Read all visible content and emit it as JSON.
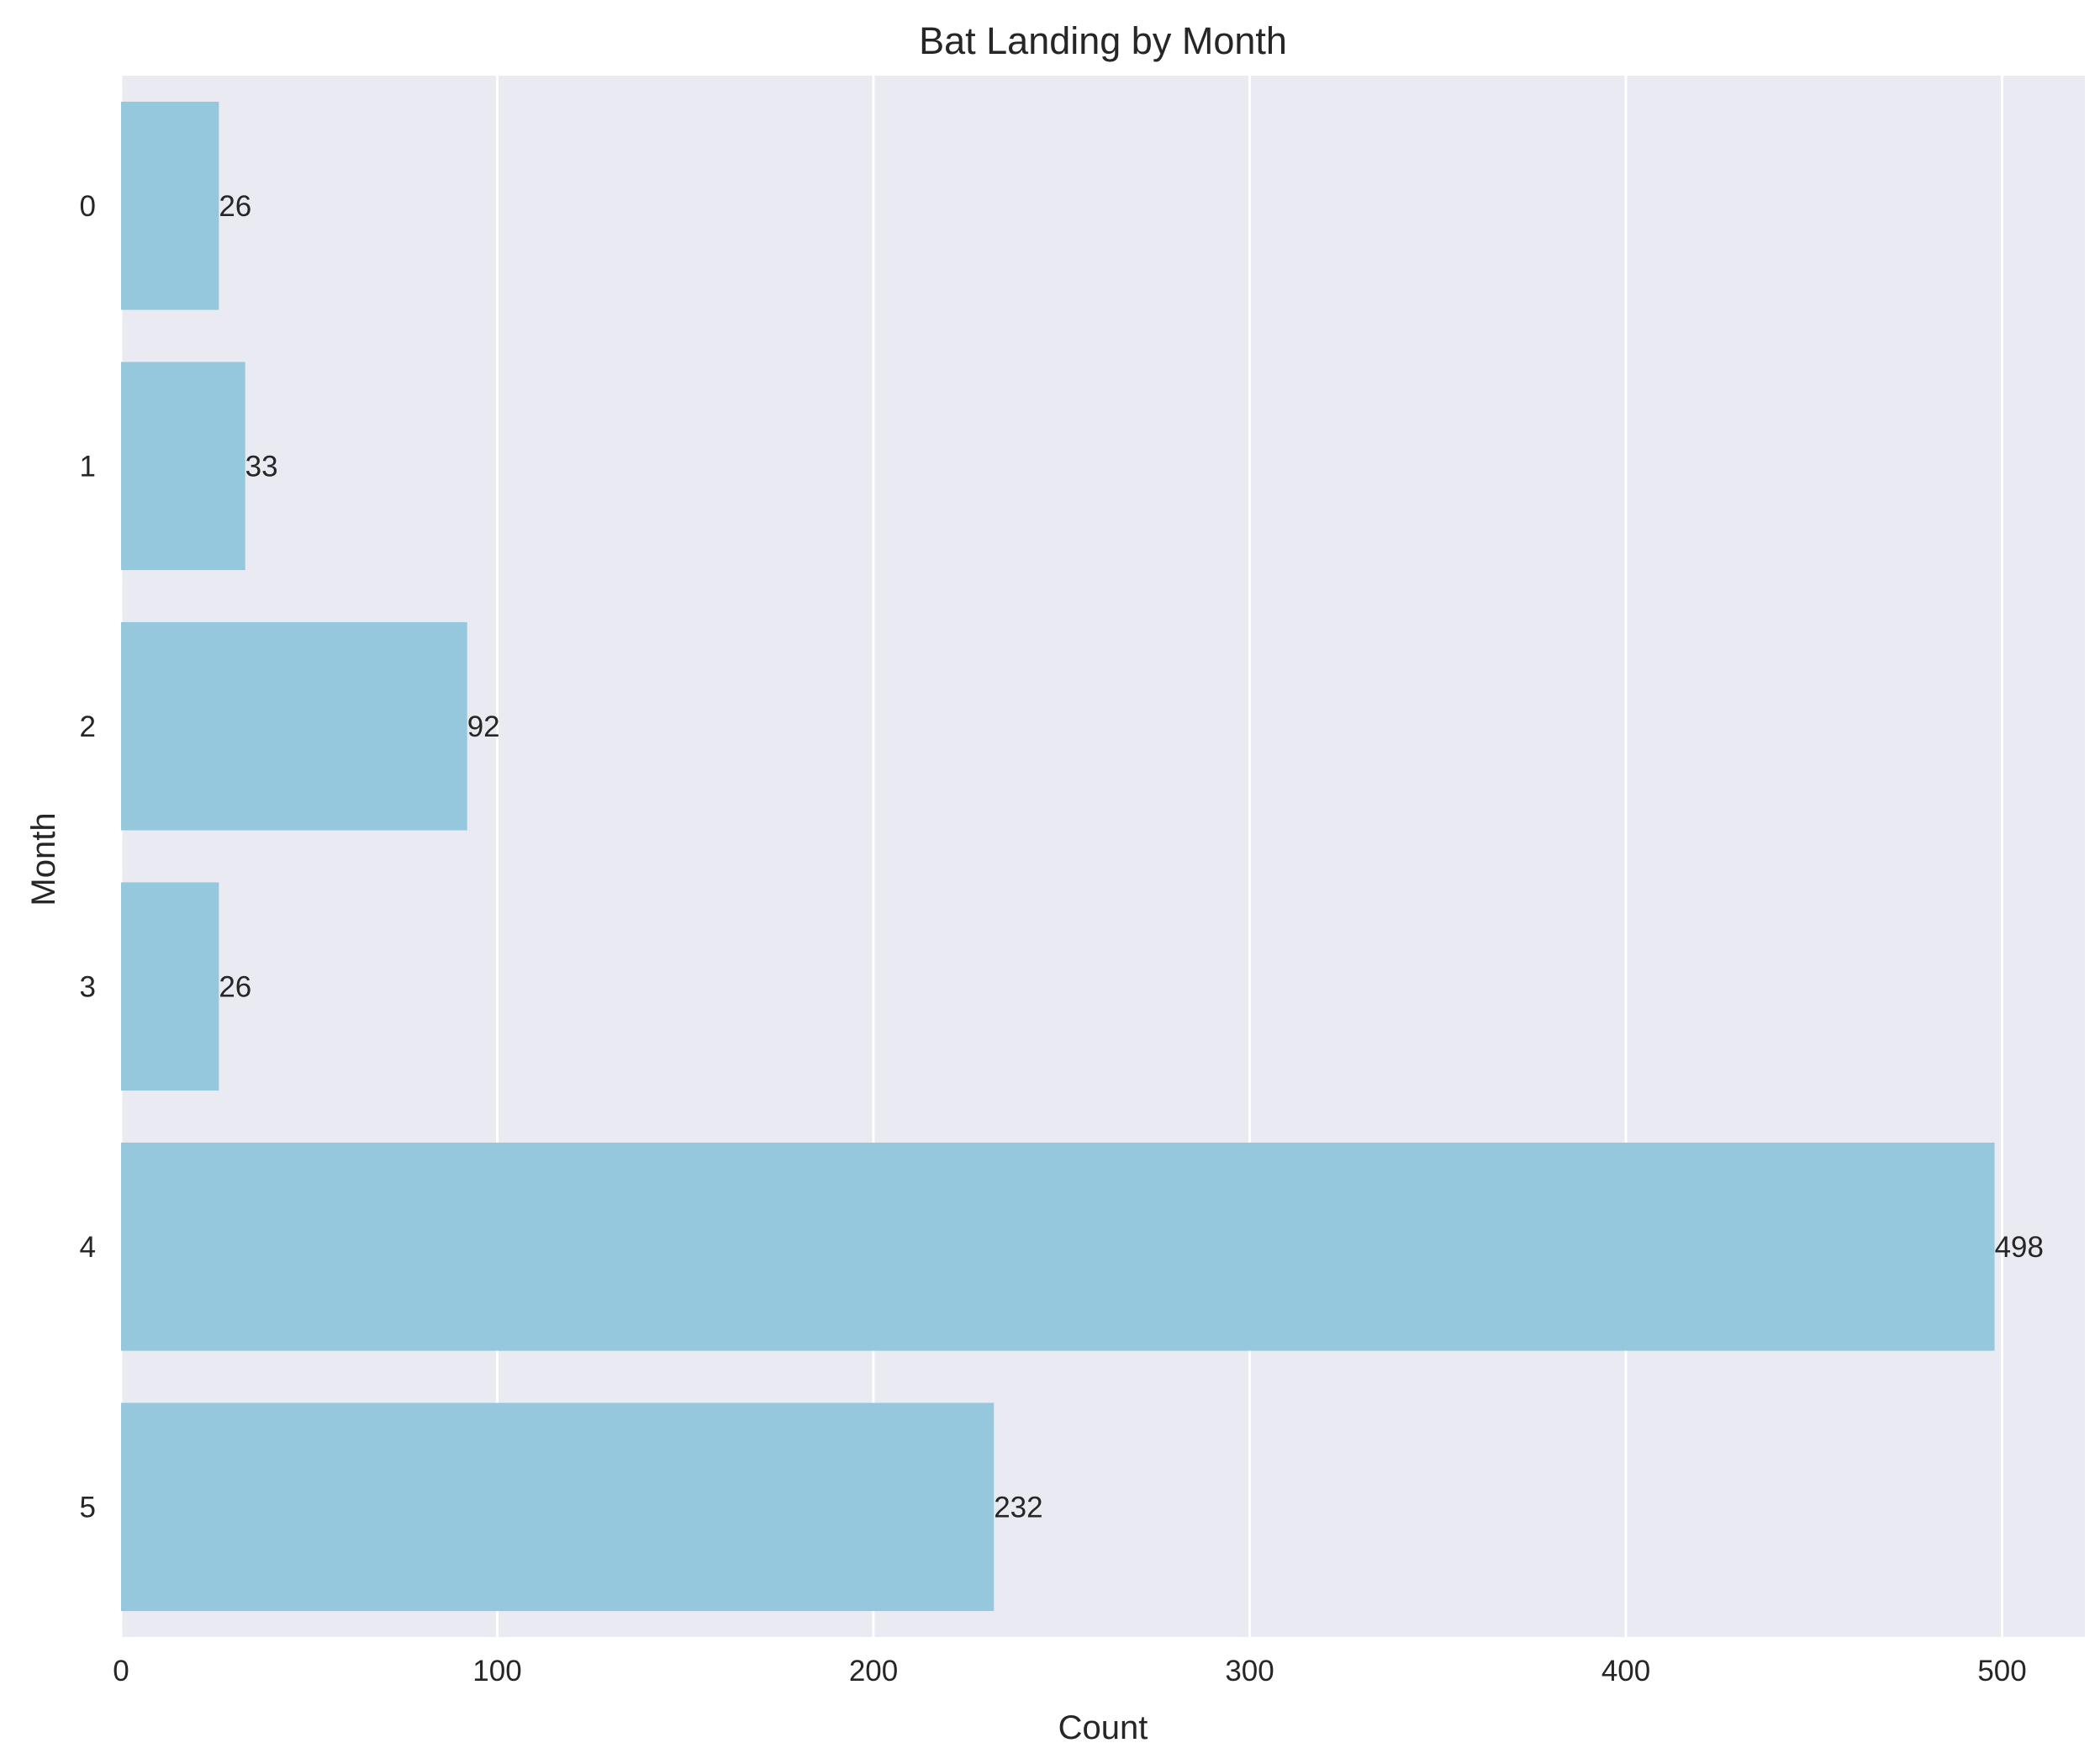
{
  "chart_data": {
    "type": "bar",
    "orientation": "horizontal",
    "title": "Bat Landing by Month",
    "xlabel": "Count",
    "ylabel": "Month",
    "categories": [
      "0",
      "1",
      "2",
      "3",
      "4",
      "5"
    ],
    "values": [
      26,
      33,
      92,
      26,
      498,
      232
    ],
    "xlim": [
      0,
      522
    ],
    "xticks": [
      0,
      100,
      200,
      300,
      400,
      500
    ],
    "grid": true,
    "colors": {
      "bar": "#96c8dd",
      "plot_background": "#eaeaf2",
      "grid": "#ffffff",
      "text": "#262626"
    }
  }
}
